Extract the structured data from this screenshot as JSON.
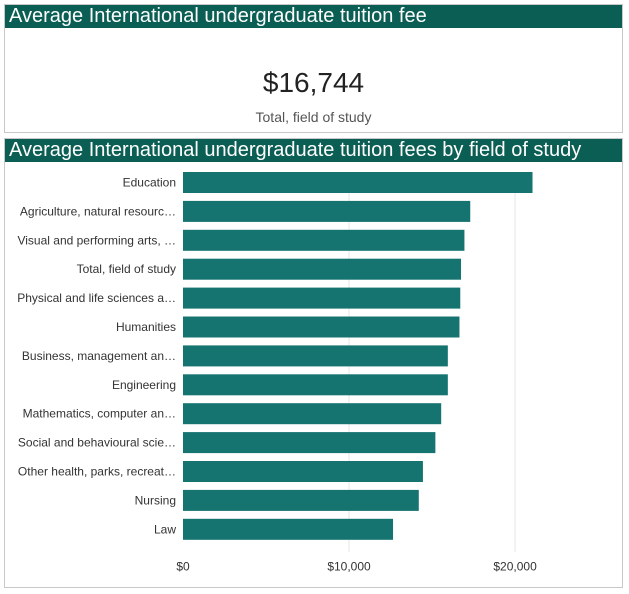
{
  "kpi": {
    "title": "Average International undergraduate tuition fee",
    "value": "$16,744",
    "label": "Total, field of study"
  },
  "chart_title": "Average International undergraduate tuition fees by field of study",
  "colors": {
    "header": "#0b5e53",
    "bar": "#157370"
  },
  "chart_data": {
    "type": "bar",
    "orientation": "horizontal",
    "title": "Average International undergraduate tuition fees by field of study",
    "categories": [
      "Education",
      "Agriculture, natural resourc…",
      "Visual and performing arts, …",
      "Total, field of study",
      "Physical and life sciences a…",
      "Humanities",
      "Business, management an…",
      "Engineering",
      "Mathematics, computer an…",
      "Social and behavioural scie…",
      "Other health, parks, recreat…",
      "Nursing",
      "Law"
    ],
    "values": [
      21050,
      17300,
      16950,
      16744,
      16700,
      16650,
      15950,
      15950,
      15550,
      15200,
      14450,
      14200,
      12650
    ],
    "xlim": [
      0,
      26500
    ],
    "xticks": [
      0,
      10000,
      20000
    ],
    "xtick_labels": [
      "$0",
      "$10,000",
      "$20,000"
    ],
    "xlabel": "",
    "ylabel": "",
    "grid": true,
    "legend": "none"
  }
}
